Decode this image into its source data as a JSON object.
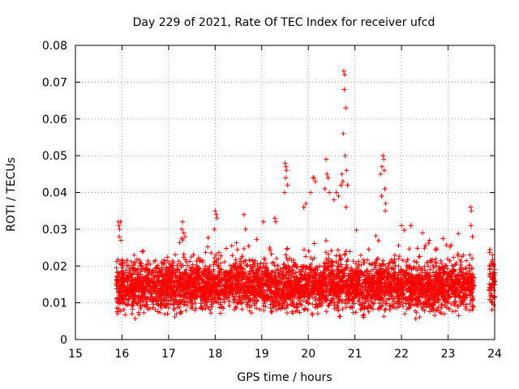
{
  "chart_data": {
    "type": "scatter",
    "title": "Day 229 of 2021, Rate Of TEC Index for receiver ufcd",
    "xlabel": "GPS time / hours",
    "ylabel": "ROTI / TECUs",
    "xlim": [
      15,
      24
    ],
    "ylim": [
      0,
      0.08
    ],
    "xticks": [
      "15",
      "16",
      "17",
      "18",
      "19",
      "20",
      "21",
      "22",
      "23",
      "24"
    ],
    "yticks": [
      "0",
      "0.01",
      "0.02",
      "0.03",
      "0.04",
      "0.05",
      "0.06",
      "0.07",
      "0.08"
    ],
    "grid": true,
    "marker": "+",
    "marker_color": "#ff0000",
    "series": [
      {
        "name": "ROTI",
        "points": [
          [
            15.92,
            0.032
          ],
          [
            15.93,
            0.031
          ],
          [
            15.95,
            0.03
          ],
          [
            15.97,
            0.032
          ],
          [
            15.98,
            0.027
          ],
          [
            15.94,
            0.028
          ],
          [
            17.3,
            0.032
          ],
          [
            17.32,
            0.029
          ],
          [
            17.35,
            0.028
          ],
          [
            17.28,
            0.03
          ],
          [
            18.0,
            0.035
          ],
          [
            18.02,
            0.034
          ],
          [
            18.04,
            0.033
          ],
          [
            17.98,
            0.03
          ],
          [
            18.62,
            0.034
          ],
          [
            18.65,
            0.03
          ],
          [
            19.28,
            0.033
          ],
          [
            19.3,
            0.032
          ],
          [
            19.5,
            0.048
          ],
          [
            19.52,
            0.047
          ],
          [
            19.53,
            0.046
          ],
          [
            19.51,
            0.044
          ],
          [
            19.55,
            0.042
          ],
          [
            19.49,
            0.04
          ],
          [
            19.9,
            0.036
          ],
          [
            19.95,
            0.037
          ],
          [
            20.1,
            0.044
          ],
          [
            20.12,
            0.044
          ],
          [
            20.15,
            0.043
          ],
          [
            20.05,
            0.04
          ],
          [
            20.38,
            0.049
          ],
          [
            20.4,
            0.045
          ],
          [
            20.42,
            0.044
          ],
          [
            20.35,
            0.041
          ],
          [
            20.45,
            0.04
          ],
          [
            20.55,
            0.038
          ],
          [
            20.6,
            0.04
          ],
          [
            20.65,
            0.039
          ],
          [
            20.7,
            0.042
          ],
          [
            20.72,
            0.045
          ],
          [
            20.76,
            0.073
          ],
          [
            20.78,
            0.072
          ],
          [
            20.77,
            0.068
          ],
          [
            20.8,
            0.063
          ],
          [
            20.75,
            0.056
          ],
          [
            20.79,
            0.05
          ],
          [
            20.82,
            0.046
          ],
          [
            20.74,
            0.043
          ],
          [
            20.84,
            0.042
          ],
          [
            20.81,
            0.036
          ],
          [
            21.6,
            0.05
          ],
          [
            21.62,
            0.049
          ],
          [
            21.58,
            0.047
          ],
          [
            21.63,
            0.046
          ],
          [
            21.55,
            0.045
          ],
          [
            21.64,
            0.041
          ],
          [
            21.57,
            0.039
          ],
          [
            21.66,
            0.037
          ],
          [
            21.65,
            0.035
          ],
          [
            22.0,
            0.031
          ],
          [
            22.2,
            0.031
          ],
          [
            22.45,
            0.029
          ],
          [
            22.6,
            0.027
          ],
          [
            23.48,
            0.036
          ],
          [
            23.5,
            0.035
          ],
          [
            23.49,
            0.031
          ],
          [
            23.52,
            0.028
          ],
          [
            23.47,
            0.023
          ],
          [
            23.95,
            0.023
          ],
          [
            23.98,
            0.02
          ],
          [
            24.0,
            0.019
          ]
        ],
        "dense_band": {
          "x_range": [
            15.88,
            24.0
          ],
          "typical_y": [
            0.003,
            0.025
          ],
          "gaps": [
            [
              23.55,
              23.88
            ]
          ],
          "point_count": 4500
        }
      }
    ]
  }
}
